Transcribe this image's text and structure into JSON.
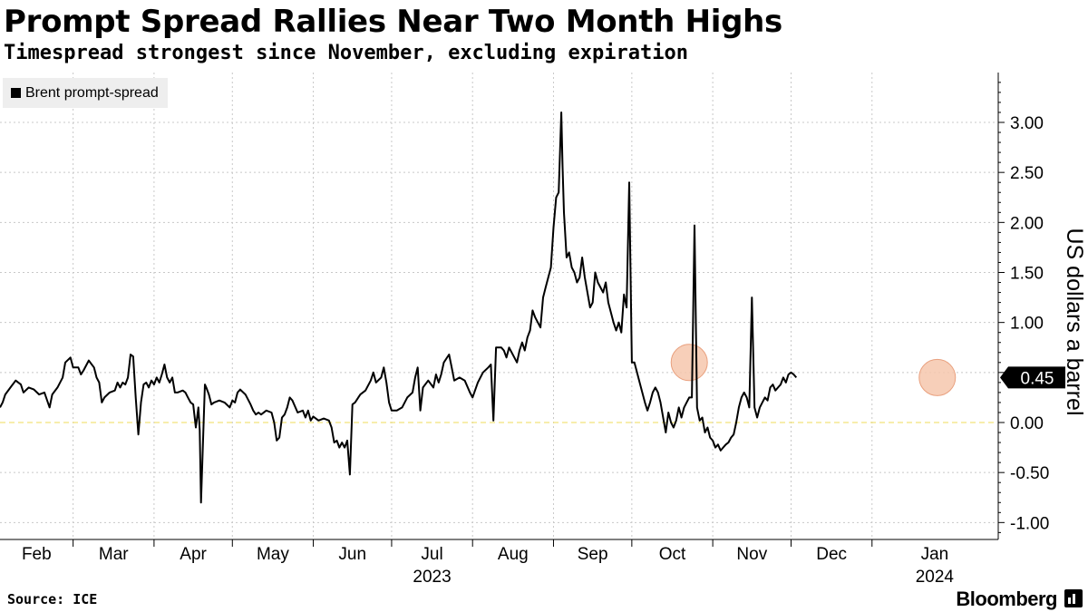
{
  "header": {
    "title": "Prompt Spread Rallies Near Two Month Highs",
    "subtitle": "Timespread strongest since November, excluding expiration"
  },
  "footer": {
    "source": "Source: ICE",
    "brand": "Bloomberg"
  },
  "colors": {
    "line": "#000000",
    "zero_line": "#f2e27a",
    "grid": "#c8c8c8",
    "highlight_fill": "#f6c7ad",
    "highlight_stroke": "#e9a07e",
    "legend_bg": "#eeeeee",
    "last_value_bg": "#000000"
  },
  "chart_data": {
    "type": "line",
    "title": "Prompt Spread Rallies Near Two Month Highs",
    "subtitle": "Timespread strongest since November, excluding expiration",
    "ylabel": "US dollars a barrel",
    "xlabel": "",
    "ylim": [
      -1.2,
      3.5
    ],
    "yticks": [
      -1.0,
      -0.5,
      0.0,
      0.5,
      1.0,
      1.5,
      2.0,
      2.5,
      3.0
    ],
    "ytick_labels": [
      "-1.00",
      "-0.50",
      "0.00",
      "0.50",
      "1.00",
      "1.50",
      "2.00",
      "2.50",
      "3.00"
    ],
    "grid": true,
    "legend": {
      "position": "top-left",
      "entries": [
        "Brent prompt-spread"
      ]
    },
    "x_range_days": [
      0,
      382
    ],
    "months": [
      {
        "label": "Feb",
        "start_day": 0
      },
      {
        "label": "Mar",
        "start_day": 28
      },
      {
        "label": "Apr",
        "start_day": 59
      },
      {
        "label": "May",
        "start_day": 89
      },
      {
        "label": "Jun",
        "start_day": 120
      },
      {
        "label": "Jul",
        "start_day": 150
      },
      {
        "label": "Aug",
        "start_day": 181
      },
      {
        "label": "Sep",
        "start_day": 212
      },
      {
        "label": "Oct",
        "start_day": 242
      },
      {
        "label": "Nov",
        "start_day": 273
      },
      {
        "label": "Dec",
        "start_day": 303
      },
      {
        "label": "Jan",
        "start_day": 334
      }
    ],
    "year_labels": [
      {
        "label": "2023",
        "under_month": "Jul"
      },
      {
        "label": "2024",
        "under_month": "Jan"
      }
    ],
    "last_value_label": "0.45",
    "highlights": [
      {
        "day": 264,
        "value": 0.6
      },
      {
        "day": 359,
        "value": 0.45
      }
    ],
    "series": [
      {
        "name": "Brent prompt-spread",
        "points": [
          [
            0,
            0.15
          ],
          [
            1,
            0.2
          ],
          [
            2,
            0.28
          ],
          [
            4,
            0.35
          ],
          [
            6,
            0.42
          ],
          [
            8,
            0.38
          ],
          [
            9,
            0.3
          ],
          [
            11,
            0.35
          ],
          [
            13,
            0.33
          ],
          [
            15,
            0.28
          ],
          [
            17,
            0.3
          ],
          [
            19,
            0.15
          ],
          [
            20,
            0.28
          ],
          [
            22,
            0.35
          ],
          [
            24,
            0.45
          ],
          [
            25,
            0.6
          ],
          [
            27,
            0.65
          ],
          [
            28,
            0.55
          ],
          [
            30,
            0.55
          ],
          [
            31,
            0.48
          ],
          [
            32,
            0.52
          ],
          [
            34,
            0.62
          ],
          [
            36,
            0.55
          ],
          [
            37,
            0.45
          ],
          [
            38,
            0.4
          ],
          [
            39,
            0.2
          ],
          [
            40,
            0.25
          ],
          [
            42,
            0.3
          ],
          [
            44,
            0.32
          ],
          [
            45,
            0.4
          ],
          [
            46,
            0.35
          ],
          [
            47,
            0.4
          ],
          [
            48,
            0.38
          ],
          [
            49,
            0.45
          ],
          [
            50,
            0.68
          ],
          [
            51,
            0.66
          ],
          [
            52,
            0.25
          ],
          [
            53,
            -0.12
          ],
          [
            54,
            0.2
          ],
          [
            55,
            0.38
          ],
          [
            56,
            0.4
          ],
          [
            57,
            0.35
          ],
          [
            58,
            0.42
          ],
          [
            59,
            0.38
          ],
          [
            60,
            0.45
          ],
          [
            61,
            0.4
          ],
          [
            62,
            0.48
          ],
          [
            63,
            0.58
          ],
          [
            64,
            0.45
          ],
          [
            65,
            0.4
          ],
          [
            66,
            0.45
          ],
          [
            67,
            0.3
          ],
          [
            68,
            0.3
          ],
          [
            70,
            0.32
          ],
          [
            71,
            0.3
          ],
          [
            72,
            0.25
          ],
          [
            73,
            0.2
          ],
          [
            74,
            0.18
          ],
          [
            75,
            -0.05
          ],
          [
            76,
            0.15
          ],
          [
            76.5,
            -0.08
          ],
          [
            77,
            -0.8
          ],
          [
            78,
            0.0
          ],
          [
            78.5,
            0.38
          ],
          [
            79,
            0.35
          ],
          [
            80,
            0.28
          ],
          [
            81,
            0.18
          ],
          [
            82,
            0.2
          ],
          [
            84,
            0.22
          ],
          [
            86,
            0.2
          ],
          [
            88,
            0.15
          ],
          [
            89,
            0.22
          ],
          [
            90,
            0.2
          ],
          [
            91,
            0.3
          ],
          [
            92,
            0.33
          ],
          [
            94,
            0.28
          ],
          [
            96,
            0.18
          ],
          [
            97,
            0.12
          ],
          [
            98,
            0.08
          ],
          [
            99,
            0.1
          ],
          [
            100,
            0.08
          ],
          [
            102,
            0.12
          ],
          [
            104,
            0.1
          ],
          [
            105,
            0.0
          ],
          [
            106,
            -0.18
          ],
          [
            107,
            -0.15
          ],
          [
            108,
            0.05
          ],
          [
            109,
            0.08
          ],
          [
            110,
            0.15
          ],
          [
            111,
            0.25
          ],
          [
            112,
            0.22
          ],
          [
            114,
            0.1
          ],
          [
            116,
            0.12
          ],
          [
            117,
            0.05
          ],
          [
            118,
            0.12
          ],
          [
            119,
            0.02
          ],
          [
            120,
            0.06
          ],
          [
            122,
            0.02
          ],
          [
            124,
            0.04
          ],
          [
            126,
            0.02
          ],
          [
            127,
            -0.05
          ],
          [
            128,
            -0.2
          ],
          [
            129,
            -0.18
          ],
          [
            130,
            -0.25
          ],
          [
            131,
            -0.2
          ],
          [
            132,
            -0.25
          ],
          [
            133,
            -0.18
          ],
          [
            134,
            -0.52
          ],
          [
            135,
            0.18
          ],
          [
            136,
            0.2
          ],
          [
            138,
            0.28
          ],
          [
            140,
            0.32
          ],
          [
            142,
            0.42
          ],
          [
            143,
            0.5
          ],
          [
            144,
            0.4
          ],
          [
            146,
            0.45
          ],
          [
            147,
            0.55
          ],
          [
            148,
            0.4
          ],
          [
            149,
            0.2
          ],
          [
            150,
            0.12
          ],
          [
            152,
            0.12
          ],
          [
            154,
            0.15
          ],
          [
            156,
            0.25
          ],
          [
            158,
            0.3
          ],
          [
            159,
            0.45
          ],
          [
            160,
            0.55
          ],
          [
            161,
            0.12
          ],
          [
            162,
            0.35
          ],
          [
            164,
            0.42
          ],
          [
            166,
            0.35
          ],
          [
            167,
            0.48
          ],
          [
            168,
            0.4
          ],
          [
            169,
            0.48
          ],
          [
            170,
            0.6
          ],
          [
            172,
            0.68
          ],
          [
            173,
            0.55
          ],
          [
            174,
            0.42
          ],
          [
            176,
            0.45
          ],
          [
            178,
            0.42
          ],
          [
            180,
            0.3
          ],
          [
            181,
            0.25
          ],
          [
            183,
            0.4
          ],
          [
            185,
            0.5
          ],
          [
            187,
            0.55
          ],
          [
            188,
            0.58
          ],
          [
            189,
            0.02
          ],
          [
            190,
            0.75
          ],
          [
            192,
            0.75
          ],
          [
            193,
            0.72
          ],
          [
            194,
            0.65
          ],
          [
            195,
            0.75
          ],
          [
            196,
            0.7
          ],
          [
            197,
            0.65
          ],
          [
            198,
            0.6
          ],
          [
            199,
            0.72
          ],
          [
            200,
            0.8
          ],
          [
            201,
            0.72
          ],
          [
            202,
            0.85
          ],
          [
            203,
            0.92
          ],
          [
            204,
            1.12
          ],
          [
            205,
            1.05
          ],
          [
            206,
            1.0
          ],
          [
            207,
            0.95
          ],
          [
            208,
            1.25
          ],
          [
            209,
            1.35
          ],
          [
            210,
            1.45
          ],
          [
            211,
            1.55
          ],
          [
            212,
            1.95
          ],
          [
            213,
            2.25
          ],
          [
            214,
            2.3
          ],
          [
            215,
            3.1
          ],
          [
            215.5,
            2.55
          ],
          [
            216,
            2.1
          ],
          [
            217,
            1.65
          ],
          [
            218,
            1.7
          ],
          [
            219,
            1.55
          ],
          [
            220,
            1.5
          ],
          [
            221,
            1.4
          ],
          [
            222,
            1.45
          ],
          [
            223,
            1.65
          ],
          [
            224,
            1.45
          ],
          [
            225,
            1.3
          ],
          [
            226,
            1.15
          ],
          [
            227,
            1.2
          ],
          [
            228,
            1.5
          ],
          [
            229,
            1.4
          ],
          [
            230,
            1.35
          ],
          [
            231,
            1.3
          ],
          [
            232,
            1.4
          ],
          [
            233,
            1.2
          ],
          [
            234,
            1.1
          ],
          [
            235,
            1.0
          ],
          [
            236,
            0.92
          ],
          [
            237,
            1.0
          ],
          [
            238,
            0.9
          ],
          [
            239,
            1.28
          ],
          [
            240,
            1.15
          ],
          [
            241,
            2.4
          ],
          [
            242,
            0.6
          ],
          [
            243,
            0.6
          ],
          [
            244,
            0.5
          ],
          [
            245,
            0.4
          ],
          [
            246,
            0.3
          ],
          [
            247,
            0.2
          ],
          [
            248,
            0.12
          ],
          [
            249,
            0.2
          ],
          [
            250,
            0.3
          ],
          [
            251,
            0.35
          ],
          [
            252,
            0.3
          ],
          [
            253,
            0.2
          ],
          [
            254,
            0.05
          ],
          [
            255,
            -0.1
          ],
          [
            256,
            0.1
          ],
          [
            257,
            0.0
          ],
          [
            258,
            -0.05
          ],
          [
            259,
            0.02
          ],
          [
            260,
            0.15
          ],
          [
            261,
            0.05
          ],
          [
            262,
            0.15
          ],
          [
            263,
            0.2
          ],
          [
            264,
            0.25
          ],
          [
            265,
            0.25
          ],
          [
            266,
            1.97
          ],
          [
            267,
            0.15
          ],
          [
            268,
            0.02
          ],
          [
            269,
            0.05
          ],
          [
            270,
            -0.1
          ],
          [
            271,
            -0.05
          ],
          [
            272,
            -0.15
          ],
          [
            273,
            -0.18
          ],
          [
            274,
            -0.25
          ],
          [
            275,
            -0.22
          ],
          [
            276,
            -0.28
          ],
          [
            277,
            -0.25
          ],
          [
            278,
            -0.22
          ],
          [
            279,
            -0.2
          ],
          [
            280,
            -0.15
          ],
          [
            281,
            -0.12
          ],
          [
            282,
            0.0
          ],
          [
            283,
            0.15
          ],
          [
            284,
            0.25
          ],
          [
            285,
            0.3
          ],
          [
            286,
            0.25
          ],
          [
            287,
            0.15
          ],
          [
            288,
            1.25
          ],
          [
            289,
            0.15
          ],
          [
            290,
            0.05
          ],
          [
            291,
            0.15
          ],
          [
            292,
            0.2
          ],
          [
            293,
            0.25
          ],
          [
            294,
            0.22
          ],
          [
            295,
            0.35
          ],
          [
            296,
            0.38
          ],
          [
            297,
            0.32
          ],
          [
            298,
            0.35
          ],
          [
            299,
            0.38
          ],
          [
            300,
            0.45
          ],
          [
            301,
            0.4
          ],
          [
            302,
            0.48
          ],
          [
            303,
            0.5
          ],
          [
            304,
            0.48
          ],
          [
            305,
            0.45
          ]
        ]
      }
    ]
  }
}
